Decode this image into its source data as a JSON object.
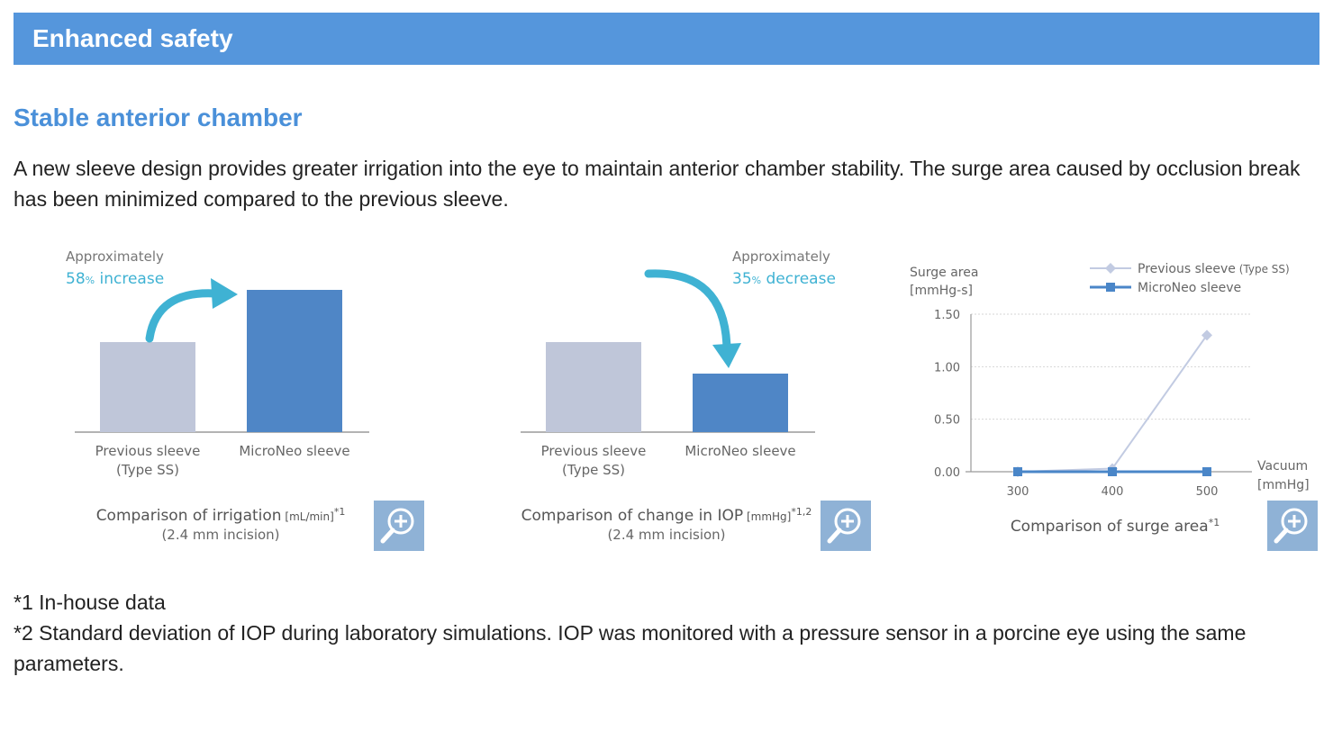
{
  "header": {
    "title": "Enhanced safety"
  },
  "section": {
    "title": "Stable anterior chamber",
    "body": "A new sleeve design provides greater irrigation into the eye to maintain anterior chamber stability. The surge area caused by occlusion break has been minimized compared to the previous sleeve."
  },
  "colors": {
    "banner": "#5596dc",
    "title_accent": "#4a90d9",
    "previous_bar": "#bfc6d9",
    "microneo_bar": "#4f86c6",
    "annotation": "#3fb2d3",
    "previous_line": "#c2cbe2",
    "microneo_line": "#4a86c8",
    "zoom_button": "#8fb2d6"
  },
  "chart_data": [
    {
      "type": "bar",
      "categories": [
        "Previous sleeve\n(Type SS)",
        "MicroNeo sleeve"
      ],
      "category_lines": [
        [
          "Previous sleeve",
          "(Type SS)"
        ],
        [
          "MicroNeo sleeve"
        ]
      ],
      "values": [
        1.0,
        1.58
      ],
      "annotation": {
        "line1": "Approximately",
        "line2_num": "58",
        "line2_unit": "%",
        "line2_text": " increase"
      },
      "caption": {
        "main": "Comparison of irrigation",
        "unit": " [mL/min]",
        "sup": "*1",
        "sub": "(2.4 mm incision)"
      }
    },
    {
      "type": "bar",
      "categories": [
        "Previous sleeve\n(Type SS)",
        "MicroNeo sleeve"
      ],
      "category_lines": [
        [
          "Previous sleeve",
          "(Type SS)"
        ],
        [
          "MicroNeo sleeve"
        ]
      ],
      "values": [
        1.0,
        0.65
      ],
      "annotation": {
        "line1": "Approximately",
        "line2_num": "35",
        "line2_unit": "%",
        "line2_text": " decrease"
      },
      "caption": {
        "main": "Comparison of change in IOP",
        "unit": " [mmHg]",
        "sup": "*1,2",
        "sub": "(2.4 mm incision)"
      }
    },
    {
      "type": "line",
      "ylabel_lines": [
        "Surge area",
        "[mmHg-s]"
      ],
      "xlabel_lines": [
        "Vacuum",
        "[mmHg]"
      ],
      "x": [
        300,
        400,
        500
      ],
      "x_ticks": [
        "300",
        "400",
        "500"
      ],
      "y_ticks": [
        "0.00",
        "0.50",
        "1.00",
        "1.50"
      ],
      "ylim": [
        0,
        1.5
      ],
      "grid": true,
      "legend_position": "top-right",
      "series": [
        {
          "name": "Previous sleeve",
          "name_suffix": " (Type SS)",
          "values": [
            0.0,
            0.03,
            1.3
          ]
        },
        {
          "name": "MicroNeo sleeve",
          "name_suffix": "",
          "values": [
            0.0,
            0.0,
            0.0
          ]
        }
      ],
      "caption": {
        "main": "Comparison of surge area",
        "sup": "*1"
      }
    }
  ],
  "footnotes": [
    "*1 In-house data",
    "*2 Standard deviation of IOP during laboratory simulations. IOP was monitored with a pressure sensor in a porcine eye using the same parameters."
  ],
  "icons": {
    "zoom": "zoom-in-icon"
  }
}
